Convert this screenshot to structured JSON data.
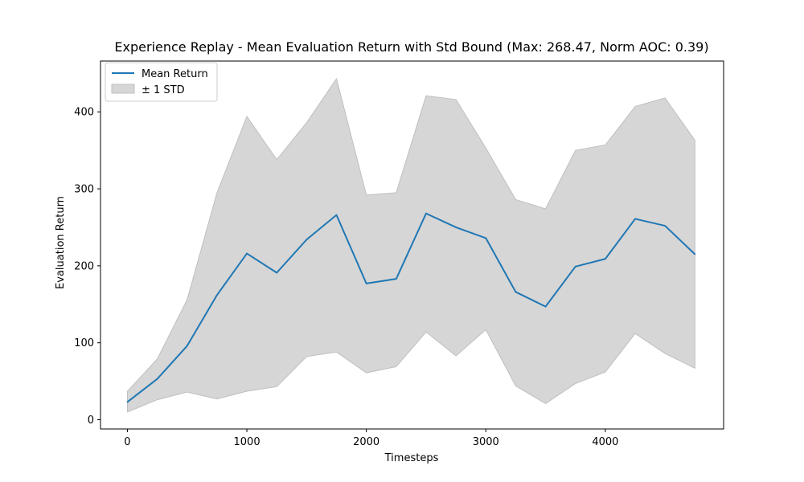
{
  "chart_data": {
    "type": "line",
    "title": "Experience Replay - Mean Evaluation Return with Std Bound (Max: 268.47, Norm AOC: 0.39)",
    "xlabel": "Timesteps",
    "ylabel": "Evaluation Return",
    "xlim": [
      -225,
      4990
    ],
    "ylim": [
      -12,
      466
    ],
    "xticks": [
      0,
      1000,
      2000,
      3000,
      4000
    ],
    "yticks": [
      0,
      100,
      200,
      300,
      400
    ],
    "x": [
      0,
      250,
      500,
      750,
      1000,
      1250,
      1500,
      1750,
      2000,
      2250,
      2500,
      2750,
      3000,
      3250,
      3500,
      3750,
      4000,
      4250,
      4500,
      4750
    ],
    "series": [
      {
        "name": "Mean Return",
        "color": "#1f77b4",
        "values": [
          23,
          53,
          96,
          162,
          216,
          191,
          234,
          266,
          177,
          183,
          268,
          250,
          236,
          166,
          147,
          199,
          209,
          261,
          252,
          215
        ]
      }
    ],
    "band": {
      "name": "± 1 STD",
      "color": "#d6d6d6",
      "edge_color": "#bfbfbf",
      "lower": [
        10,
        26,
        36,
        27,
        37,
        43,
        82,
        88,
        61,
        69,
        114,
        83,
        117,
        44,
        21,
        47,
        62,
        112,
        86,
        67
      ],
      "upper": [
        37,
        79,
        156,
        295,
        394,
        338,
        386,
        443,
        292,
        295,
        421,
        416,
        353,
        286,
        274,
        350,
        357,
        407,
        418,
        363
      ]
    },
    "legend_position": "top-left",
    "grid": false
  }
}
